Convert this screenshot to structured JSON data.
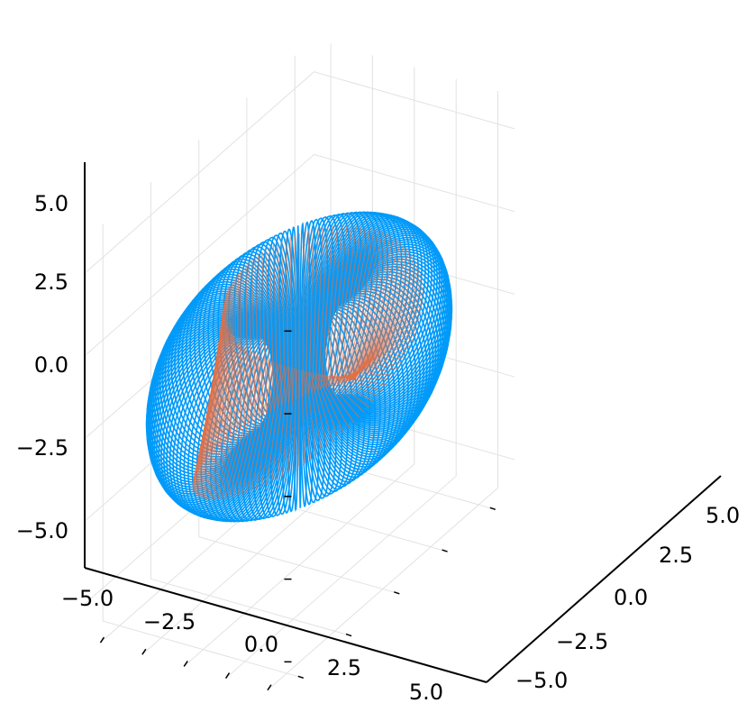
{
  "chart_data": {
    "type": "surface",
    "title": "",
    "xlabel": "",
    "ylabel": "",
    "zlabel": "",
    "legend": "none",
    "grid": true,
    "xlim": [
      -6,
      6
    ],
    "ylim": [
      -6,
      6
    ],
    "zlim": [
      -6,
      6
    ],
    "x_ticks": [
      -5.0,
      -2.5,
      0.0,
      2.5,
      5.0
    ],
    "y_ticks": [
      -5.0,
      -2.5,
      0.0,
      2.5,
      5.0
    ],
    "z_ticks": [
      -5.0,
      -2.5,
      0.0,
      2.5,
      5.0
    ],
    "x_tick_labels": [
      "−5.0",
      "−2.5",
      "0.0",
      "2.5",
      "5.0"
    ],
    "y_tick_labels": [
      "−5.0",
      "−2.5",
      "0.0",
      "2.5",
      "5.0"
    ],
    "z_tick_labels": [
      "−5.0",
      "−2.5",
      "0.0",
      "2.5",
      "5.0"
    ],
    "series": [
      {
        "kind": "torus-wireframe",
        "color": "#009af9",
        "major_radius": 3.5,
        "minor_radius": 2.5,
        "tube_curves": 160,
        "samples_per_curve": 40
      },
      {
        "kind": "mobius-strip-wireframe",
        "color": "#e26f46",
        "opacity": 0.6,
        "radius": 3.5,
        "half_width": 1.5,
        "lines": 140
      }
    ]
  }
}
